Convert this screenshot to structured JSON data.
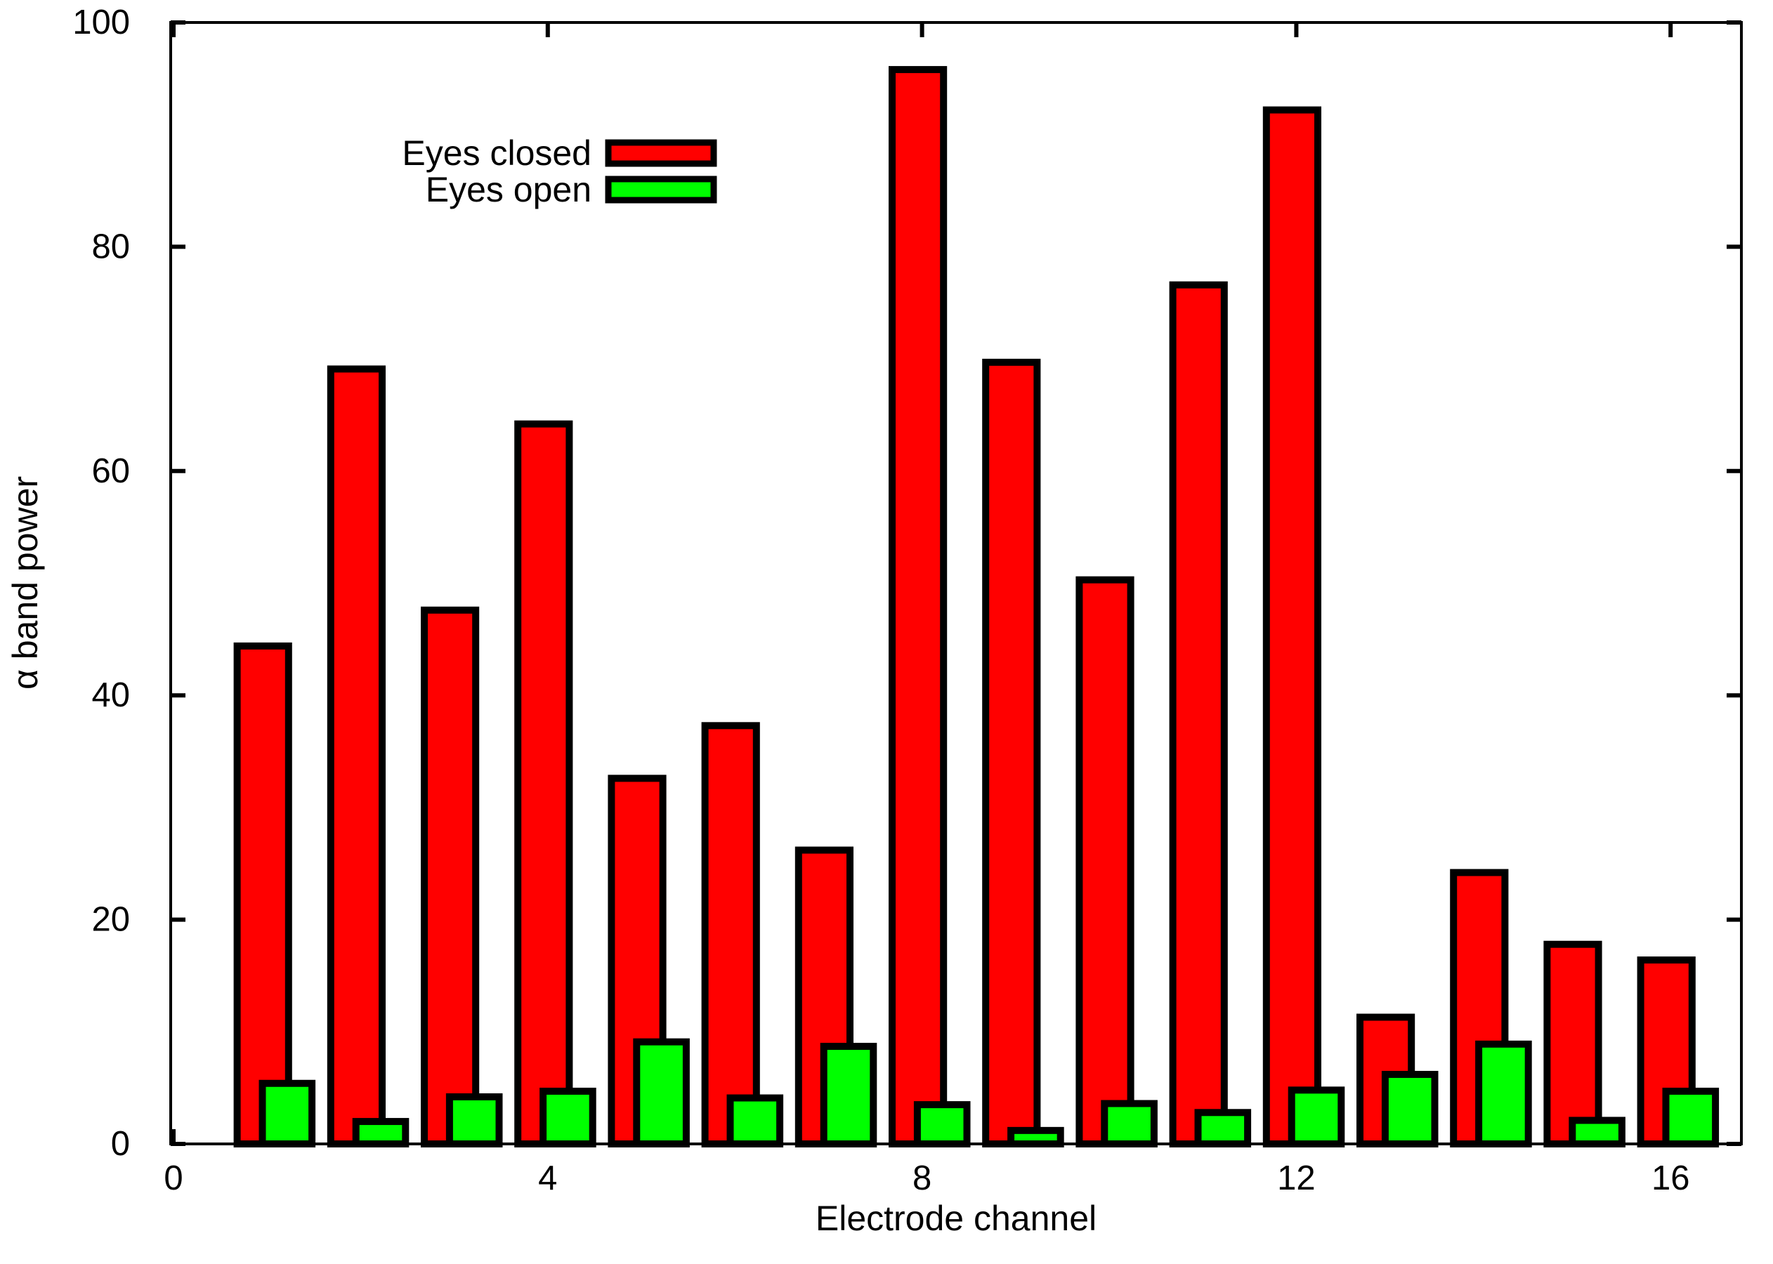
{
  "chart_data": {
    "type": "bar",
    "title": "",
    "xlabel": "Electrode channel",
    "ylabel": "α band power",
    "categories": [
      1,
      2,
      3,
      4,
      5,
      6,
      7,
      8,
      9,
      10,
      11,
      12,
      13,
      14,
      15,
      16
    ],
    "series": [
      {
        "name": "Eyes closed",
        "color": "#ff0000",
        "values": [
          44.4,
          69.1,
          47.6,
          64.2,
          32.6,
          37.3,
          26.2,
          95.8,
          69.7,
          50.3,
          76.6,
          92.2,
          11.3,
          24.2,
          17.8,
          16.4
        ]
      },
      {
        "name": "Eyes open",
        "color": "#00ff00",
        "values": [
          5.4,
          2.0,
          4.2,
          4.7,
          9.1,
          4.1,
          8.7,
          3.5,
          1.2,
          3.6,
          2.8,
          4.8,
          6.2,
          8.9,
          2.1,
          4.7
        ]
      }
    ],
    "xlim": [
      0,
      16.76
    ],
    "ylim": [
      0,
      100
    ],
    "x_ticks": [
      0,
      4,
      8,
      12,
      16
    ],
    "y_ticks": [
      0,
      20,
      40,
      60,
      80,
      100
    ],
    "grid": false,
    "legend_position": "top-left",
    "bar_outline_color": "#000000",
    "axis_color": "#000000"
  }
}
